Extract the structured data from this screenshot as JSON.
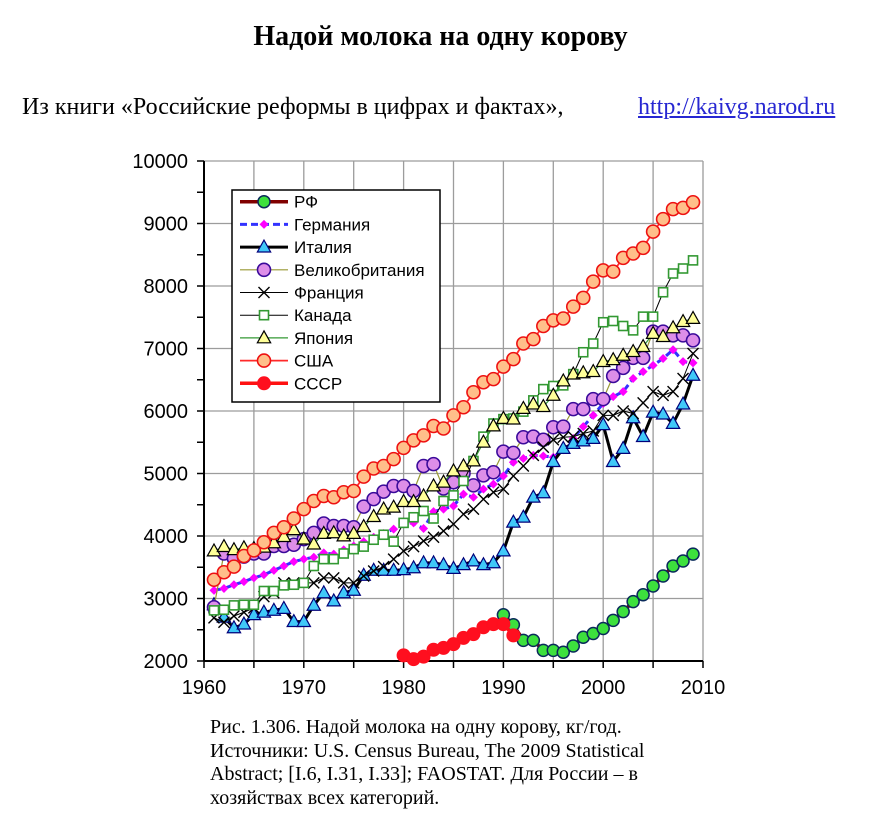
{
  "header": {
    "title": "Надой молока на одну корову",
    "subtitle_text": "Из книги «Российские реформы в цифрах и фактах»,",
    "subtitle_link": "http://kaivg.narod.ru",
    "link_color": "#2727d2"
  },
  "caption": {
    "lines": [
      "Рис. 1.306. Надой молока на одну корову, кг/год.",
      "Источники: U.S. Census Bureau, The 2009 Statistical",
      "Abstract; [I.6, I.31, I.33]; FAOSTAT. Для России – в",
      "хозяйствах всех категорий."
    ]
  },
  "chart_data": {
    "type": "line",
    "title": "Надой молока на одну корову",
    "xlabel": "",
    "ylabel": "",
    "unit": "кг/год",
    "xlim": [
      1960,
      2010
    ],
    "ylim": [
      2000,
      10000
    ],
    "xticks": [
      "1960",
      "1970",
      "1980",
      "1990",
      "2000",
      "2010"
    ],
    "xtick_values": [
      1960,
      1970,
      1980,
      1990,
      2000,
      2010
    ],
    "yticks": [
      "10000",
      "9000",
      "8000",
      "7000",
      "6000",
      "5000",
      "4000",
      "3000",
      "2000"
    ],
    "ytick_values": [
      10000,
      9000,
      8000,
      7000,
      6000,
      5000,
      4000,
      3000,
      2000
    ],
    "x_grid_step": 5,
    "y_grid_step": 1000,
    "y_minor_tick_step": 500,
    "grid": true,
    "legend_position": "upper left (inside plot)",
    "x": [
      1961,
      1962,
      1963,
      1964,
      1965,
      1966,
      1967,
      1968,
      1969,
      1970,
      1971,
      1972,
      1973,
      1974,
      1975,
      1976,
      1977,
      1978,
      1979,
      1980,
      1981,
      1982,
      1983,
      1984,
      1985,
      1986,
      1987,
      1988,
      1989,
      1990,
      1991,
      1992,
      1993,
      1994,
      1995,
      1996,
      1997,
      1998,
      1999,
      2000,
      2001,
      2002,
      2003,
      2004,
      2005,
      2006,
      2007,
      2008,
      2009
    ],
    "series": [
      {
        "id": "rf",
        "name": "РФ",
        "x": [
          1990,
          1991,
          1992,
          1993,
          1994,
          1995,
          1996,
          1997,
          1998,
          1999,
          2000,
          2001,
          2002,
          2003,
          2004,
          2005,
          2006,
          2007,
          2008,
          2009
        ],
        "values": [
          2740,
          2580,
          2330,
          2330,
          2170,
          2170,
          2140,
          2240,
          2380,
          2440,
          2520,
          2650,
          2790,
          2950,
          3060,
          3200,
          3360,
          3520,
          3600,
          3710
        ],
        "style": {
          "line_color": "#800000",
          "line_width": 3.5,
          "dash": "",
          "marker": "circle",
          "marker_size": 6,
          "marker_fill": "#3de03d",
          "marker_stroke": "#0a2a5a",
          "marker_stroke_width": 1.5
        }
      },
      {
        "id": "germany",
        "name": "Германия",
        "values": [
          3130,
          3160,
          3220,
          3270,
          3330,
          3380,
          3450,
          3520,
          3590,
          3630,
          3660,
          3730,
          3710,
          3780,
          3840,
          3910,
          3980,
          4040,
          4110,
          4200,
          4210,
          4120,
          4390,
          4430,
          4480,
          4670,
          4620,
          4750,
          4830,
          4960,
          5180,
          5240,
          5290,
          5280,
          5260,
          5380,
          5560,
          5750,
          5930,
          6120,
          6230,
          6310,
          6520,
          6630,
          6730,
          6840,
          6980,
          6790,
          6770
        ],
        "style": {
          "line_color": "#3333ff",
          "line_width": 3,
          "dash": "7,4",
          "marker": "diamond",
          "marker_size": 4.5,
          "marker_fill": "#ff00ff",
          "marker_stroke": "none",
          "marker_stroke_width": 0
        }
      },
      {
        "id": "italy",
        "name": "Италия",
        "values": [
          2900,
          2700,
          2530,
          2590,
          2740,
          2780,
          2810,
          2840,
          2630,
          2630,
          2890,
          3090,
          2960,
          3090,
          3130,
          3370,
          3450,
          3450,
          3450,
          3460,
          3490,
          3570,
          3570,
          3540,
          3480,
          3540,
          3600,
          3540,
          3570,
          3760,
          4220,
          4300,
          4620,
          4690,
          5190,
          5400,
          5480,
          5520,
          5560,
          5780,
          5190,
          5400,
          5890,
          5590,
          5980,
          5950,
          5800,
          6110,
          6570
        ],
        "style": {
          "line_color": "#000000",
          "line_width": 3,
          "dash": "",
          "marker": "triangle",
          "marker_size": 7,
          "marker_fill": "#40c8f8",
          "marker_stroke": "#00007a",
          "marker_stroke_width": 1.2
        }
      },
      {
        "id": "uk",
        "name": "Великобритания",
        "values": [
          2860,
          3720,
          3640,
          3670,
          3720,
          3720,
          3840,
          3840,
          3860,
          3950,
          4050,
          4200,
          4160,
          4160,
          4140,
          4470,
          4590,
          4710,
          4800,
          4800,
          4720,
          5120,
          5150,
          4760,
          4860,
          5000,
          4810,
          4970,
          5020,
          5350,
          5330,
          5580,
          5590,
          5540,
          5740,
          5750,
          6030,
          6030,
          6190,
          6190,
          6560,
          6690,
          6850,
          6850,
          7270,
          7270,
          7210,
          7210,
          7130
        ],
        "style": {
          "line_color": "#999933",
          "line_width": 1.2,
          "dash": "",
          "marker": "circle",
          "marker_size": 6.5,
          "marker_fill": "#dd8ee8",
          "marker_stroke": "#3a0a9a",
          "marker_stroke_width": 1.6
        }
      },
      {
        "id": "france",
        "name": "Франция",
        "values": [
          2690,
          2620,
          2720,
          2780,
          2850,
          3030,
          3090,
          3250,
          3250,
          3250,
          3250,
          3330,
          3330,
          3250,
          3250,
          3360,
          3440,
          3510,
          3630,
          3760,
          3830,
          3920,
          3980,
          4080,
          4190,
          4350,
          4430,
          4590,
          4700,
          4750,
          4960,
          5120,
          5290,
          5420,
          5540,
          5580,
          5590,
          5640,
          5680,
          5930,
          5930,
          6000,
          5960,
          6130,
          6310,
          6250,
          6310,
          6520,
          6920
        ],
        "style": {
          "line_color": "#000000",
          "line_width": 1,
          "dash": "",
          "marker": "x",
          "marker_size": 5.5,
          "marker_fill": "none",
          "marker_stroke": "#000000",
          "marker_stroke_width": 1.4
        }
      },
      {
        "id": "canada",
        "name": "Канада",
        "values": [
          2810,
          2820,
          2890,
          2900,
          2900,
          3120,
          3120,
          3210,
          3220,
          3250,
          3520,
          3630,
          3630,
          3720,
          3790,
          3830,
          3940,
          4020,
          3910,
          4210,
          4300,
          4400,
          4280,
          4560,
          4650,
          4880,
          5200,
          5590,
          5800,
          5870,
          5880,
          5990,
          6170,
          6350,
          6400,
          6410,
          6590,
          6940,
          7080,
          7420,
          7440,
          7360,
          7290,
          7510,
          7510,
          7900,
          8200,
          8280,
          8410
        ],
        "style": {
          "line_color": "#000000",
          "line_width": 1,
          "dash": "",
          "marker": "square",
          "marker_size": 4.5,
          "marker_fill": "#ffffff",
          "marker_stroke": "#339933",
          "marker_stroke_width": 1.6
        }
      },
      {
        "id": "japan",
        "name": "Япония",
        "values": [
          3760,
          3830,
          3780,
          3810,
          3800,
          3820,
          3890,
          3990,
          4100,
          3950,
          3870,
          4040,
          4050,
          4000,
          4040,
          4150,
          4310,
          4430,
          4460,
          4550,
          4550,
          4640,
          4800,
          4860,
          5040,
          5120,
          5200,
          5500,
          5760,
          5880,
          5870,
          6040,
          6110,
          6070,
          6250,
          6480,
          6590,
          6610,
          6630,
          6790,
          6820,
          6890,
          6950,
          7030,
          7240,
          7190,
          7330,
          7430,
          7480
        ],
        "style": {
          "line_color": "#339933",
          "line_width": 1.2,
          "dash": "",
          "marker": "triangle",
          "marker_size": 7,
          "marker_fill": "#ffff99",
          "marker_stroke": "#000000",
          "marker_stroke_width": 1.2
        }
      },
      {
        "id": "usa",
        "name": "США",
        "values": [
          3300,
          3420,
          3510,
          3680,
          3770,
          3900,
          4050,
          4140,
          4280,
          4430,
          4560,
          4640,
          4620,
          4700,
          4720,
          4950,
          5080,
          5120,
          5230,
          5410,
          5530,
          5610,
          5760,
          5720,
          5930,
          6060,
          6300,
          6460,
          6510,
          6710,
          6830,
          7080,
          7150,
          7360,
          7450,
          7480,
          7670,
          7810,
          8070,
          8250,
          8230,
          8450,
          8520,
          8610,
          8870,
          9070,
          9230,
          9250,
          9340
        ],
        "style": {
          "line_color": "#ff2a2a",
          "line_width": 1.8,
          "dash": "",
          "marker": "circle",
          "marker_size": 6.5,
          "marker_fill": "#ffbf8a",
          "marker_stroke": "#ee1111",
          "marker_stroke_width": 1.6
        }
      },
      {
        "id": "ussr",
        "name": "СССР",
        "x": [
          1980,
          1981,
          1982,
          1983,
          1984,
          1985,
          1986,
          1987,
          1988,
          1989,
          1990,
          1991
        ],
        "values": [
          2090,
          2030,
          2070,
          2180,
          2210,
          2270,
          2370,
          2430,
          2540,
          2590,
          2590,
          2410
        ],
        "style": {
          "line_color": "#ff1111",
          "line_width": 3.5,
          "dash": "",
          "marker": "circle",
          "marker_size": 6.5,
          "marker_fill": "#ff0f1f",
          "marker_stroke": "#ff0f1f",
          "marker_stroke_width": 1
        }
      }
    ]
  }
}
